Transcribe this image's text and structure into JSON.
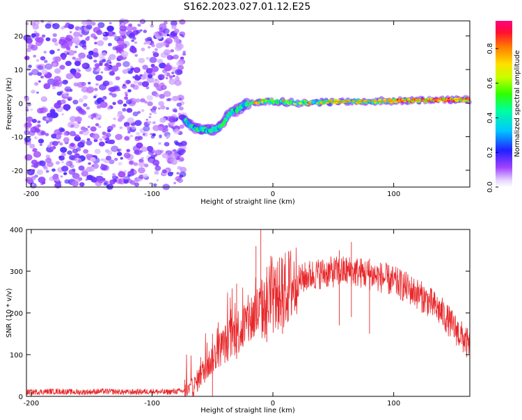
{
  "title": "S162.2023.027.01.12.E25",
  "colors": {
    "line": "#e8282b",
    "track": "#ff8a00",
    "bg": "#ffffff"
  },
  "chart_data": [
    {
      "type": "heatmap",
      "xlabel": "Height of straight line (km)",
      "ylabel": "Frequency (Hz)",
      "xlim": [
        -204,
        163
      ],
      "ylim": [
        -25,
        24.5
      ],
      "xticks": [
        -200,
        -100,
        0,
        100
      ],
      "yticks": [
        20,
        10,
        0,
        -10,
        -20
      ],
      "colorbar": {
        "label": "Normalized spectral amplitude",
        "range": [
          0,
          0.96
        ],
        "ticks": [
          0.0,
          0.2,
          0.4,
          0.6,
          0.8
        ]
      },
      "regions": {
        "noise_x": [
          -204,
          -73
        ],
        "signal_x": [
          -73,
          163
        ]
      },
      "track": {
        "x": [
          -73,
          -65,
          -55,
          -48,
          -42,
          -36,
          -30,
          -24,
          -18,
          -10,
          0,
          20,
          40,
          60,
          80,
          100,
          120,
          140,
          163
        ],
        "y": [
          -5,
          -7.5,
          -8,
          -8,
          -6.5,
          -3,
          -2,
          -0.5,
          0,
          0.5,
          0.5,
          0,
          0.3,
          0.5,
          0.5,
          0.6,
          0.8,
          1,
          1
        ]
      }
    },
    {
      "type": "line",
      "xlabel": "Height of straight line (km)",
      "ylabel": "SNR (10 * v/v)",
      "xlim": [
        -204,
        163
      ],
      "ylim": [
        0,
        400
      ],
      "xticks": [
        -200,
        -100,
        0,
        100
      ],
      "yticks": [
        0,
        100,
        200,
        300,
        400
      ],
      "series": [
        {
          "x": [
            -204,
            -180,
            -160,
            -140,
            -120,
            -100,
            -90,
            -80,
            -70,
            -65,
            -60,
            -55,
            -50,
            -45,
            -40,
            -35,
            -30,
            -25,
            -20,
            -15,
            -10,
            -5,
            0,
            5,
            10,
            15,
            20,
            30,
            40,
            50,
            60,
            70,
            80,
            90,
            100,
            110,
            120,
            130,
            140,
            150,
            160,
            163
          ],
          "y": [
            10,
            12,
            10,
            12,
            10,
            12,
            10,
            12,
            14,
            25,
            50,
            70,
            90,
            110,
            125,
            140,
            155,
            165,
            180,
            195,
            205,
            215,
            230,
            245,
            255,
            265,
            275,
            290,
            295,
            298,
            300,
            298,
            292,
            285,
            275,
            262,
            245,
            225,
            200,
            165,
            130,
            118
          ],
          "spikes": [
            [
              -73,
              40
            ],
            [
              -50,
              150
            ],
            [
              -30,
              270
            ],
            [
              -14,
              360
            ],
            [
              -10,
              400
            ],
            [
              -5,
              310
            ],
            [
              8,
              330
            ],
            [
              55,
              350
            ],
            [
              65,
              370
            ],
            [
              80,
              330
            ]
          ]
        }
      ]
    }
  ]
}
